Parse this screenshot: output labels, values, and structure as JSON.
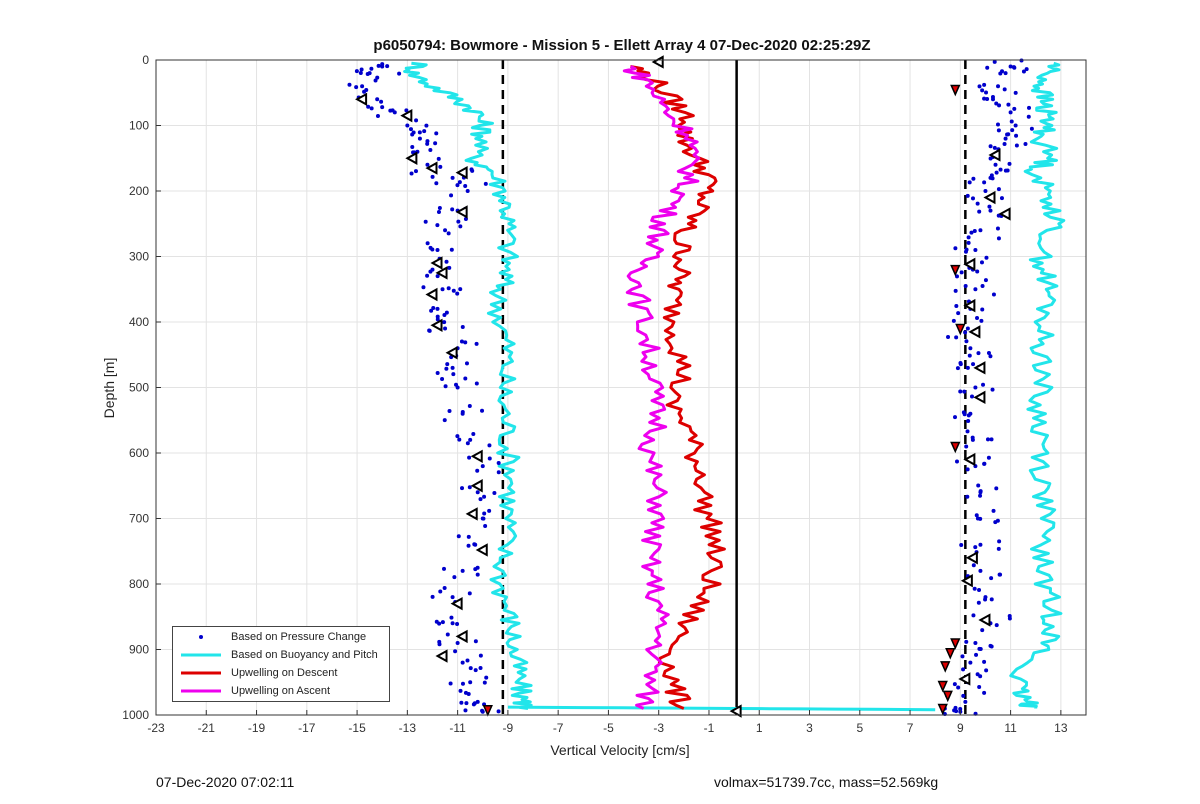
{
  "chart_data": {
    "type": "scatter",
    "title": "p6050794: Bowmore - Mission 5 - Ellett Array 4 07-Dec-2020 02:25:29Z",
    "xlabel": "Vertical Velocity [cm/s]",
    "ylabel": "Depth [m]",
    "xlim": [
      -23,
      14
    ],
    "ylim": [
      0,
      1000
    ],
    "y_reversed": true,
    "xticks": [
      -23,
      -21,
      -19,
      -17,
      -15,
      -13,
      -11,
      -9,
      -7,
      -5,
      -3,
      -1,
      1,
      3,
      5,
      7,
      9,
      11,
      13
    ],
    "yticks": [
      0,
      100,
      200,
      300,
      400,
      500,
      600,
      700,
      800,
      900,
      1000
    ],
    "grid": true,
    "legend_position": "bottom-left",
    "reference_lines": [
      {
        "style": "dashed",
        "x": -9.2,
        "color": "#000000"
      },
      {
        "style": "solid",
        "x": 0.1,
        "color": "#000000"
      },
      {
        "style": "dashed",
        "x": 9.2,
        "color": "#000000"
      }
    ],
    "series": [
      {
        "name": "Based on Pressure Change",
        "style": "points",
        "color": "#0000cc",
        "profiles": [
          {
            "depth": [
              10,
              20,
              40,
              60,
              80,
              100,
              120,
              140,
              160,
              180,
              200,
              230,
              260,
              290,
              320,
              350,
              380,
              410,
              440,
              470,
              500,
              540,
              580,
              620,
              660,
              700,
              740,
              780,
              820,
              860,
              890,
              920,
              950,
              980,
              995
            ],
            "x": [
              -14.0,
              -14.5,
              -14.8,
              -14.2,
              -13.5,
              -13.0,
              -12.5,
              -12.6,
              -12.2,
              -11.2,
              -10.6,
              -11.0,
              -11.5,
              -11.8,
              -12.0,
              -11.6,
              -11.8,
              -11.5,
              -11.0,
              -11.2,
              -11.0,
              -10.8,
              -10.5,
              -10.0,
              -10.2,
              -10.0,
              -10.3,
              -10.8,
              -11.2,
              -11.2,
              -11.0,
              -10.8,
              -10.5,
              -10.2,
              -10.0
            ]
          },
          {
            "depth": [
              10,
              20,
              40,
              60,
              80,
              100,
              120,
              140,
              160,
              180,
              200,
              230,
              260,
              290,
              320,
              350,
              380,
              410,
              440,
              470,
              500,
              540,
              580,
              620,
              660,
              700,
              740,
              780,
              820,
              860,
              890,
              920,
              950,
              980,
              995
            ],
            "x": [
              11.0,
              10.8,
              10.5,
              10.3,
              11.0,
              11.2,
              10.8,
              10.5,
              10.4,
              10.2,
              10.0,
              10.2,
              9.8,
              9.6,
              9.5,
              9.6,
              9.4,
              9.3,
              9.4,
              9.3,
              9.6,
              9.4,
              9.5,
              9.6,
              9.8,
              9.7,
              9.8,
              9.8,
              10.0,
              10.2,
              9.6,
              9.4,
              9.3,
              9.2,
              9.0
            ]
          }
        ]
      },
      {
        "name": "Based on Buoyancy and Pitch",
        "style": "line",
        "color": "#22e5ea",
        "profiles": [
          {
            "depth": [
              5,
              20,
              40,
              60,
              80,
              100,
              120,
              150,
              170,
              200,
              230,
              260,
              300,
              330,
              360,
              400,
              440,
              480,
              520,
              560,
              600,
              640,
              680,
              720,
              760,
              800,
              840,
              870,
              900,
              930,
              960,
              980,
              990
            ],
            "x": [
              -12.5,
              -12.8,
              -12.0,
              -11.0,
              -10.2,
              -10.0,
              -10.0,
              -10.4,
              -9.6,
              -9.2,
              -9.0,
              -9.0,
              -9.0,
              -9.1,
              -9.4,
              -9.3,
              -9.0,
              -9.1,
              -9.2,
              -9.0,
              -9.0,
              -8.8,
              -9.0,
              -9.0,
              -9.2,
              -9.3,
              -9.0,
              -8.8,
              -8.8,
              -8.6,
              -8.5,
              -8.4,
              -8.2
            ]
          },
          {
            "depth": [
              5,
              20,
              40,
              60,
              80,
              100,
              120,
              150,
              170,
              200,
              230,
              260,
              300,
              330,
              360,
              400,
              440,
              480,
              520,
              560,
              600,
              640,
              680,
              720,
              760,
              800,
              840,
              870,
              900,
              930,
              960,
              980,
              990
            ],
            "x": [
              12.8,
              12.5,
              12.2,
              12.3,
              12.4,
              12.5,
              12.2,
              12.6,
              12.0,
              12.4,
              12.8,
              12.6,
              12.2,
              12.4,
              12.5,
              12.3,
              12.2,
              12.4,
              12.0,
              12.2,
              12.3,
              12.2,
              12.4,
              12.3,
              12.2,
              12.4,
              12.6,
              12.8,
              12.2,
              11.4,
              11.2,
              11.6,
              12.0
            ]
          },
          {
            "depth": [
              988,
              990,
              992
            ],
            "x": [
              -9.0,
              0.1,
              8.0
            ]
          }
        ]
      },
      {
        "name": "Upwelling on Descent",
        "style": "line",
        "color": "#dd0000",
        "profiles": [
          {
            "depth": [
              10,
              30,
              60,
              90,
              120,
              150,
              180,
              210,
              240,
              270,
              300,
              330,
              360,
              400,
              440,
              480,
              520,
              560,
              600,
              640,
              680,
              720,
              760,
              800,
              840,
              880,
              920,
              960,
              990
            ],
            "x": [
              -4.0,
              -3.2,
              -2.5,
              -1.8,
              -2.0,
              -1.5,
              -1.0,
              -1.2,
              -1.6,
              -2.2,
              -2.0,
              -2.2,
              -2.4,
              -2.4,
              -2.2,
              -2.0,
              -2.6,
              -1.8,
              -1.6,
              -1.2,
              -1.2,
              -0.8,
              -0.8,
              -1.0,
              -1.6,
              -2.2,
              -2.6,
              -2.4,
              -2.0
            ]
          }
        ]
      },
      {
        "name": "Upwelling on Ascent",
        "style": "line",
        "color": "#ee00ee",
        "profiles": [
          {
            "depth": [
              10,
              30,
              60,
              90,
              120,
              150,
              180,
              210,
              240,
              270,
              300,
              330,
              360,
              400,
              440,
              480,
              520,
              560,
              600,
              640,
              680,
              720,
              760,
              800,
              840,
              880,
              920,
              960,
              990
            ],
            "x": [
              -4.2,
              -3.5,
              -3.0,
              -2.4,
              -1.6,
              -1.8,
              -1.8,
              -2.2,
              -2.8,
              -3.0,
              -3.4,
              -3.8,
              -3.8,
              -3.6,
              -3.4,
              -3.2,
              -3.2,
              -3.0,
              -3.4,
              -3.2,
              -3.0,
              -3.2,
              -3.4,
              -3.2,
              -3.0,
              -3.0,
              -3.2,
              -3.4,
              -3.6
            ]
          }
        ]
      }
    ],
    "markers": {
      "open_triangles": [
        {
          "x": -14.8,
          "depth": 60
        },
        {
          "x": -13.0,
          "depth": 85
        },
        {
          "x": -12.8,
          "depth": 150
        },
        {
          "x": -12.0,
          "depth": 165
        },
        {
          "x": -10.8,
          "depth": 172
        },
        {
          "x": -10.8,
          "depth": 232
        },
        {
          "x": -11.8,
          "depth": 310
        },
        {
          "x": -11.6,
          "depth": 325
        },
        {
          "x": -12.0,
          "depth": 358
        },
        {
          "x": -11.8,
          "depth": 405
        },
        {
          "x": -11.2,
          "depth": 447
        },
        {
          "x": -10.2,
          "depth": 605
        },
        {
          "x": -10.2,
          "depth": 650
        },
        {
          "x": -10.4,
          "depth": 693
        },
        {
          "x": -10.0,
          "depth": 748
        },
        {
          "x": -11.0,
          "depth": 830
        },
        {
          "x": -10.8,
          "depth": 880
        },
        {
          "x": -11.6,
          "depth": 910
        },
        {
          "x": -3.0,
          "depth": 3
        },
        {
          "x": 0.1,
          "depth": 994
        },
        {
          "x": 10.4,
          "depth": 145
        },
        {
          "x": 10.2,
          "depth": 210
        },
        {
          "x": 10.8,
          "depth": 235
        },
        {
          "x": 9.4,
          "depth": 312
        },
        {
          "x": 9.4,
          "depth": 375
        },
        {
          "x": 9.6,
          "depth": 415
        },
        {
          "x": 9.8,
          "depth": 470
        },
        {
          "x": 9.8,
          "depth": 515
        },
        {
          "x": 9.4,
          "depth": 610
        },
        {
          "x": 9.5,
          "depth": 760
        },
        {
          "x": 9.3,
          "depth": 795
        },
        {
          "x": 10.0,
          "depth": 855
        },
        {
          "x": 9.2,
          "depth": 945
        }
      ],
      "red_filled": [
        {
          "x": 8.8,
          "depth": 45
        },
        {
          "x": 8.8,
          "depth": 320
        },
        {
          "x": 9.0,
          "depth": 410
        },
        {
          "x": 8.8,
          "depth": 590
        },
        {
          "x": 8.8,
          "depth": 890
        },
        {
          "x": 8.6,
          "depth": 905
        },
        {
          "x": 8.4,
          "depth": 925
        },
        {
          "x": 8.3,
          "depth": 955
        },
        {
          "x": 8.5,
          "depth": 970
        },
        {
          "x": 8.3,
          "depth": 990
        },
        {
          "x": -9.8,
          "depth": 992
        }
      ]
    }
  },
  "legend": {
    "items": [
      {
        "label": "Based on Pressure Change",
        "color": "#0000cc",
        "kind": "point"
      },
      {
        "label": "Based on Buoyancy and Pitch",
        "color": "#22e5ea",
        "kind": "line"
      },
      {
        "label": "Upwelling on Descent",
        "color": "#dd0000",
        "kind": "line"
      },
      {
        "label": "Upwelling on Ascent",
        "color": "#ee00ee",
        "kind": "line"
      }
    ]
  },
  "footer": {
    "left": "07-Dec-2020 07:02:11",
    "right": "volmax=51739.7cc, mass=52.569kg"
  }
}
